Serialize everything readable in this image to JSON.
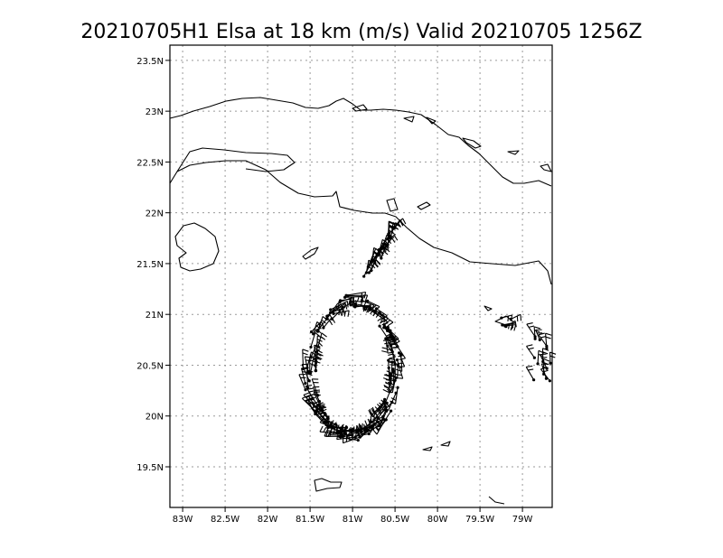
{
  "title": "20210705H1 Elsa at 18 km (m/s) Valid 20210705 1256Z",
  "map": {
    "lon_range": [
      -83.15,
      -78.65
    ],
    "lat_range": [
      19.1,
      23.65
    ],
    "x_ticks": [
      {
        "value": -83.0,
        "label": "83W"
      },
      {
        "value": -82.5,
        "label": "82.5W"
      },
      {
        "value": -82.0,
        "label": "82W"
      },
      {
        "value": -81.5,
        "label": "81.5W"
      },
      {
        "value": -81.0,
        "label": "81W"
      },
      {
        "value": -80.5,
        "label": "80.5W"
      },
      {
        "value": -80.0,
        "label": "80W"
      },
      {
        "value": -79.5,
        "label": "79.5W"
      },
      {
        "value": -79.0,
        "label": "79W"
      }
    ],
    "y_ticks": [
      {
        "value": 19.5,
        "label": "19.5N"
      },
      {
        "value": 20.0,
        "label": "20N"
      },
      {
        "value": 20.5,
        "label": "20.5N"
      },
      {
        "value": 21.0,
        "label": "21N"
      },
      {
        "value": 21.5,
        "label": "21.5N"
      },
      {
        "value": 22.0,
        "label": "22N"
      },
      {
        "value": 22.5,
        "label": "22.5N"
      },
      {
        "value": 23.0,
        "label": "23N"
      },
      {
        "value": 23.5,
        "label": "23.5N"
      }
    ],
    "grid": true,
    "coastlines": "Cuba, Isla de la Juventud and nearby cays",
    "wind_barbs": "dense ring of wind barbs around storm center near 81.0W 20.5N"
  }
}
